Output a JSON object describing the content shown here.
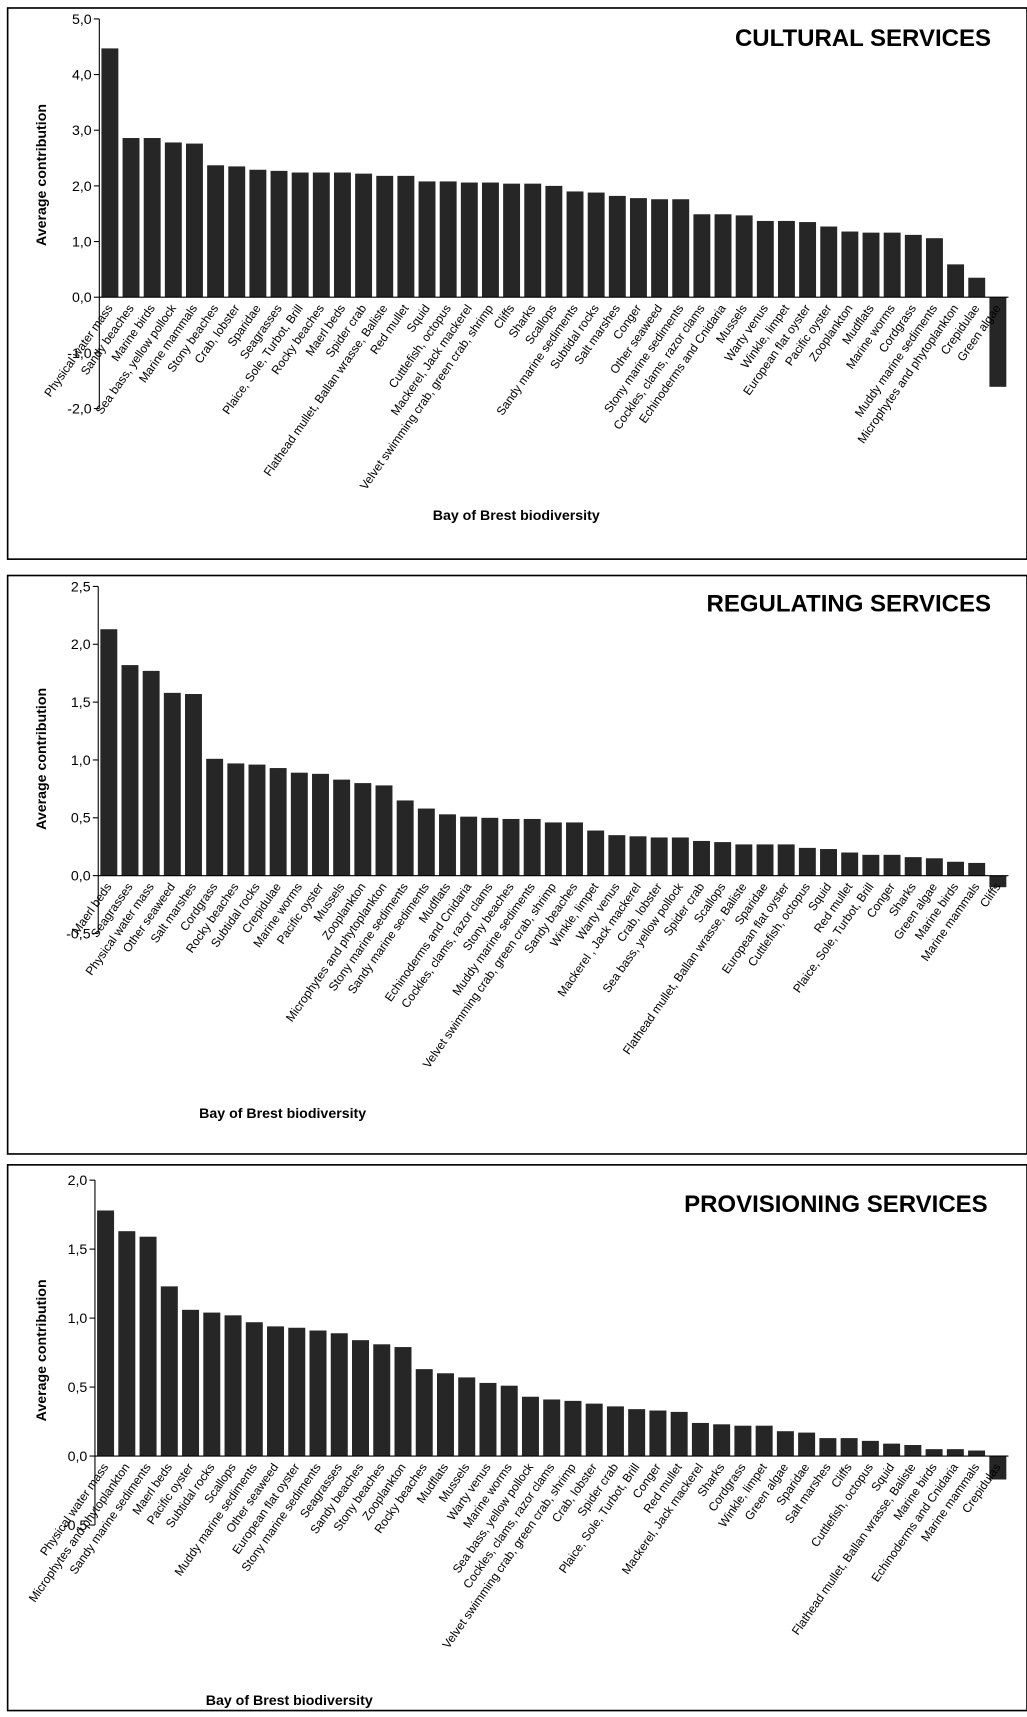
{
  "chart_data": [
    {
      "type": "bar",
      "title": "CULTURAL SERVICES",
      "x_label": "Bay of Brest biodiversity",
      "y_label": "Average contribution",
      "color": "#262626",
      "categories": [
        "Physical water mass",
        "Sandy beaches",
        "Marine birds",
        "Sea bass, yellow pollock",
        "Marine mammals",
        "Stony beaches",
        "Crab, lobster",
        "Sparidae",
        "Seagrasses",
        "Plaice, Sole, Turbot, Brill",
        "Rocky beaches",
        "Maerl beds",
        "Spider crab",
        "Flathead mullet, Ballan wrasse, Baliste",
        "Red mullet",
        "Squid",
        "Cuttlefish, octopus",
        "Mackerel, Jack mackerel",
        "Velvet swimming crab, green crab, shrimp",
        "Cliffs",
        "Sharks",
        "Scallops",
        "Sandy marine sediments",
        "Subtidal rocks",
        "Salt marshes",
        "Conger",
        "Other seaweed",
        "Stony marine sediments",
        "Cockles, clams, razor clams",
        "Echinoderms and Cnidaria",
        "Mussels",
        "Warty venus",
        "Winkle, limpet",
        "European flat oyster",
        "Pacific oyster",
        "Zooplankton",
        "Mudflats",
        "Marine worms",
        "Cordgrass",
        "Muddy marine sediments",
        "Microphytes and phytoplankton",
        "Crepidulae",
        "Green algae"
      ],
      "values": [
        4.47,
        2.86,
        2.86,
        2.78,
        2.76,
        2.37,
        2.35,
        2.29,
        2.27,
        2.24,
        2.24,
        2.24,
        2.22,
        2.18,
        2.18,
        2.08,
        2.08,
        2.06,
        2.06,
        2.04,
        2.04,
        2.0,
        1.9,
        1.88,
        1.82,
        1.78,
        1.76,
        1.76,
        1.49,
        1.49,
        1.47,
        1.37,
        1.37,
        1.35,
        1.27,
        1.18,
        1.16,
        1.16,
        1.12,
        1.06,
        0.59,
        0.35,
        -1.61
      ],
      "ylim": [
        -2,
        5
      ],
      "yticks": [
        {
          "value": -2,
          "label": "-2,0"
        },
        {
          "value": -1,
          "label": "-1,0"
        },
        {
          "value": 0,
          "label": "0,0"
        },
        {
          "value": 1,
          "label": "1,0"
        },
        {
          "value": 2,
          "label": "2,0"
        },
        {
          "value": 3,
          "label": "3,0"
        },
        {
          "value": 4,
          "label": "4,0"
        },
        {
          "value": 5,
          "label": "5,0"
        }
      ]
    },
    {
      "type": "bar",
      "title": "REGULATING SERVICES",
      "x_label": "Bay of Brest biodiversity",
      "y_label": "Average contribution",
      "color": "#262626",
      "categories": [
        "Maerl beds",
        "Seagrasses",
        "Physical water mass",
        "Other seaweed",
        "Salt marshes",
        "Cordgrass",
        "Rocky beaches",
        "Subtidal rocks",
        "Crepidulae",
        "Marine worms",
        "Pacific oyster",
        "Mussels",
        "Zooplankton",
        "Microphytes and phytoplankton",
        "Stony marine sediments",
        "Sandy marine sediments",
        "Mudflats",
        "Echinoderms and Cnidaria",
        "Cockles, clams, razor clams",
        "Stony beaches",
        "Muddy marine sediments",
        "Velvet swimming crab, green crab, shrimp",
        "Sandy beaches",
        "Winkle, limpet",
        "Warty venus",
        "Mackerel , Jack mackerel",
        "Crab, lobster",
        "Sea bass, yellow pollock",
        "Spider crab",
        "Scallops",
        "Flathead mullet, Ballan wrasse, Baliste",
        "Sparidae",
        "European flat oyster",
        "Cuttlefish, octopus",
        "Squid",
        "Red mullet",
        "Plaice, Sole, Turbot, Brill",
        "Conger",
        "Sharks",
        "Green algae",
        "Marine birds",
        "Marine mammals",
        "Cliffs"
      ],
      "values": [
        2.13,
        1.82,
        1.77,
        1.58,
        1.57,
        1.01,
        0.97,
        0.96,
        0.93,
        0.89,
        0.88,
        0.83,
        0.8,
        0.78,
        0.65,
        0.58,
        0.53,
        0.51,
        0.5,
        0.49,
        0.49,
        0.46,
        0.46,
        0.39,
        0.35,
        0.34,
        0.33,
        0.33,
        0.3,
        0.29,
        0.27,
        0.27,
        0.27,
        0.24,
        0.23,
        0.2,
        0.18,
        0.18,
        0.16,
        0.15,
        0.12,
        0.11,
        -0.1
      ],
      "ylim": [
        -0.5,
        2.5
      ],
      "yticks": [
        {
          "value": -0.5,
          "label": "-0,5"
        },
        {
          "value": 0,
          "label": "0,0"
        },
        {
          "value": 0.5,
          "label": "0,5"
        },
        {
          "value": 1,
          "label": "1,0"
        },
        {
          "value": 1.5,
          "label": "1,5"
        },
        {
          "value": 2,
          "label": "2,0"
        },
        {
          "value": 2.5,
          "label": "2,5"
        }
      ]
    },
    {
      "type": "bar",
      "title": "PROVISIONING SERVICES",
      "x_label": "Bay of Brest biodiversity",
      "y_label": "Average contribution",
      "color": "#262626",
      "categories": [
        "Physical water mass",
        "Microphytes and phytoplankton",
        "Sandy marine sediments",
        "Maerl beds",
        "Pacific oyster",
        "Subtidal rocks",
        "Scallops",
        "Muddy marine sediments",
        "Other seaweed",
        "European flat oyster",
        "Stony marine sediments",
        "Seagrasses",
        "Sandy beaches",
        "Stony beaches",
        "Zooplankton",
        "Rocky beaches",
        "Mudflats",
        "Mussels",
        "Warty venus",
        "Marine worms",
        "Sea bass, yellow pollock",
        "Cockles, clams, razor clams",
        "Velvet swimming crab, green crab, shrimp",
        "Crab, lobster",
        "Spider crab",
        "Plaice, Sole, Turbot, Brill",
        "Conger",
        "Red mullet",
        "Mackerel, Jack mackerel",
        "Sharks",
        "Cordgrass",
        "Winkle, limpet",
        "Green algae",
        "Sparidae",
        "Salt marshes",
        "Cliffs",
        "Cuttlefish, octopus",
        "Squid",
        "Flathead mullet, Ballan wrasse, Baliste",
        "Marine birds",
        "Echinoderms and Cnidaria",
        "Marine mammals",
        "Crepidulas"
      ],
      "values": [
        1.78,
        1.63,
        1.59,
        1.23,
        1.06,
        1.04,
        1.02,
        0.97,
        0.94,
        0.93,
        0.91,
        0.89,
        0.84,
        0.81,
        0.79,
        0.63,
        0.6,
        0.57,
        0.53,
        0.51,
        0.43,
        0.41,
        0.4,
        0.38,
        0.36,
        0.34,
        0.33,
        0.32,
        0.24,
        0.23,
        0.22,
        0.22,
        0.18,
        0.17,
        0.13,
        0.13,
        0.11,
        0.09,
        0.08,
        0.05,
        0.05,
        0.04,
        -0.17
      ],
      "ylim": [
        -0.5,
        2
      ],
      "yticks": [
        {
          "value": -0.5,
          "label": "-0,5"
        },
        {
          "value": 0,
          "label": "0,0"
        },
        {
          "value": 0.5,
          "label": "0,5"
        },
        {
          "value": 1,
          "label": "1,0"
        },
        {
          "value": 1.5,
          "label": "1,5"
        },
        {
          "value": 2,
          "label": "2,0"
        }
      ]
    }
  ]
}
